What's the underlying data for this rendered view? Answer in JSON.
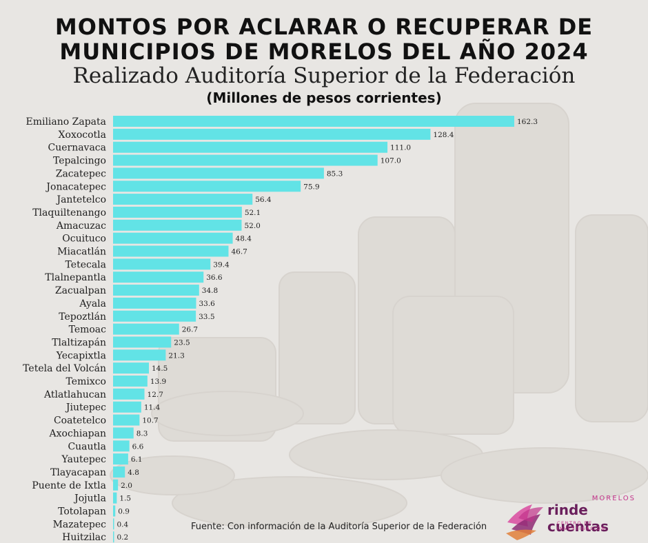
{
  "header": {
    "title_line1": "MONTOS POR ACLARAR O RECUPERAR DE",
    "title_line2": "MUNICIPIOS DE MORELOS DEL AÑO 2024",
    "subtitle": "Realizado Auditoría Superior de la Federación",
    "units": "(Millones de pesos corrientes)"
  },
  "footer": {
    "source": "Fuente: Con información de la Auditoría Superior de la Federación"
  },
  "logo": {
    "top_text": "MORELOS",
    "main_text": "rinde cuentas",
    "sub_text": "CENTRO DE INVESTIGACIÓN"
  },
  "colors": {
    "bar": "#62e3e6",
    "background": "#e8e6e3",
    "logo_primary": "#6a1f5c",
    "logo_accent": "#c2338a"
  },
  "chart_data": {
    "type": "bar",
    "orientation": "horizontal",
    "title": "MONTOS POR ACLARAR O RECUPERAR DE MUNICIPIOS DE MORELOS DEL AÑO 2024",
    "categories": [
      "Emiliano Zapata",
      "Xoxocotla",
      "Cuernavaca",
      "Tepalcingo",
      "Zacatepec",
      "Jonacatepec",
      "Jantetelco",
      "Tlaquiltenango",
      "Amacuzac",
      "Ocuituco",
      "Miacatlán",
      "Tetecala",
      "Tlalnepantla",
      "Zacualpan",
      "Ayala",
      "Tepoztlán",
      "Temoac",
      "Tlaltizapán",
      "Yecapixtla",
      "Tetela del Volcán",
      "Temixco",
      "Atlatlahucan",
      "Jiutepec",
      "Coatetelco",
      "Axochiapan",
      "Cuautla",
      "Yautepec",
      "Tlayacapan",
      "Puente de Ixtla",
      "Jojutla",
      "Totolapan",
      "Mazatepec",
      "Huitzilac"
    ],
    "values": [
      162.3,
      128.4,
      111.0,
      107.0,
      85.3,
      75.9,
      56.4,
      52.1,
      52.0,
      48.4,
      46.7,
      39.4,
      36.6,
      34.8,
      33.6,
      33.5,
      26.7,
      23.5,
      21.3,
      14.5,
      13.9,
      12.7,
      11.4,
      10.7,
      8.3,
      6.6,
      6.1,
      4.8,
      2.0,
      1.5,
      0.9,
      0.4,
      0.2
    ],
    "value_labels": [
      "162.3",
      "128.4",
      "111.0",
      "107.0",
      "85.3",
      "75.9",
      "56.4",
      "52.1",
      "52.0",
      "48.4",
      "46.7",
      "39.4",
      "36.6",
      "34.8",
      "33.6",
      "33.5",
      "26.7",
      "23.5",
      "21.3",
      "14.5",
      "13.9",
      "12.7",
      "11.4",
      "10.7",
      "8.3",
      "6.6",
      "6.1",
      "4.8",
      "2.0",
      "1.5",
      "0.9",
      "0.4",
      "0.2"
    ],
    "xlim": [
      0,
      162.3
    ],
    "grid": false,
    "legend": "none"
  }
}
